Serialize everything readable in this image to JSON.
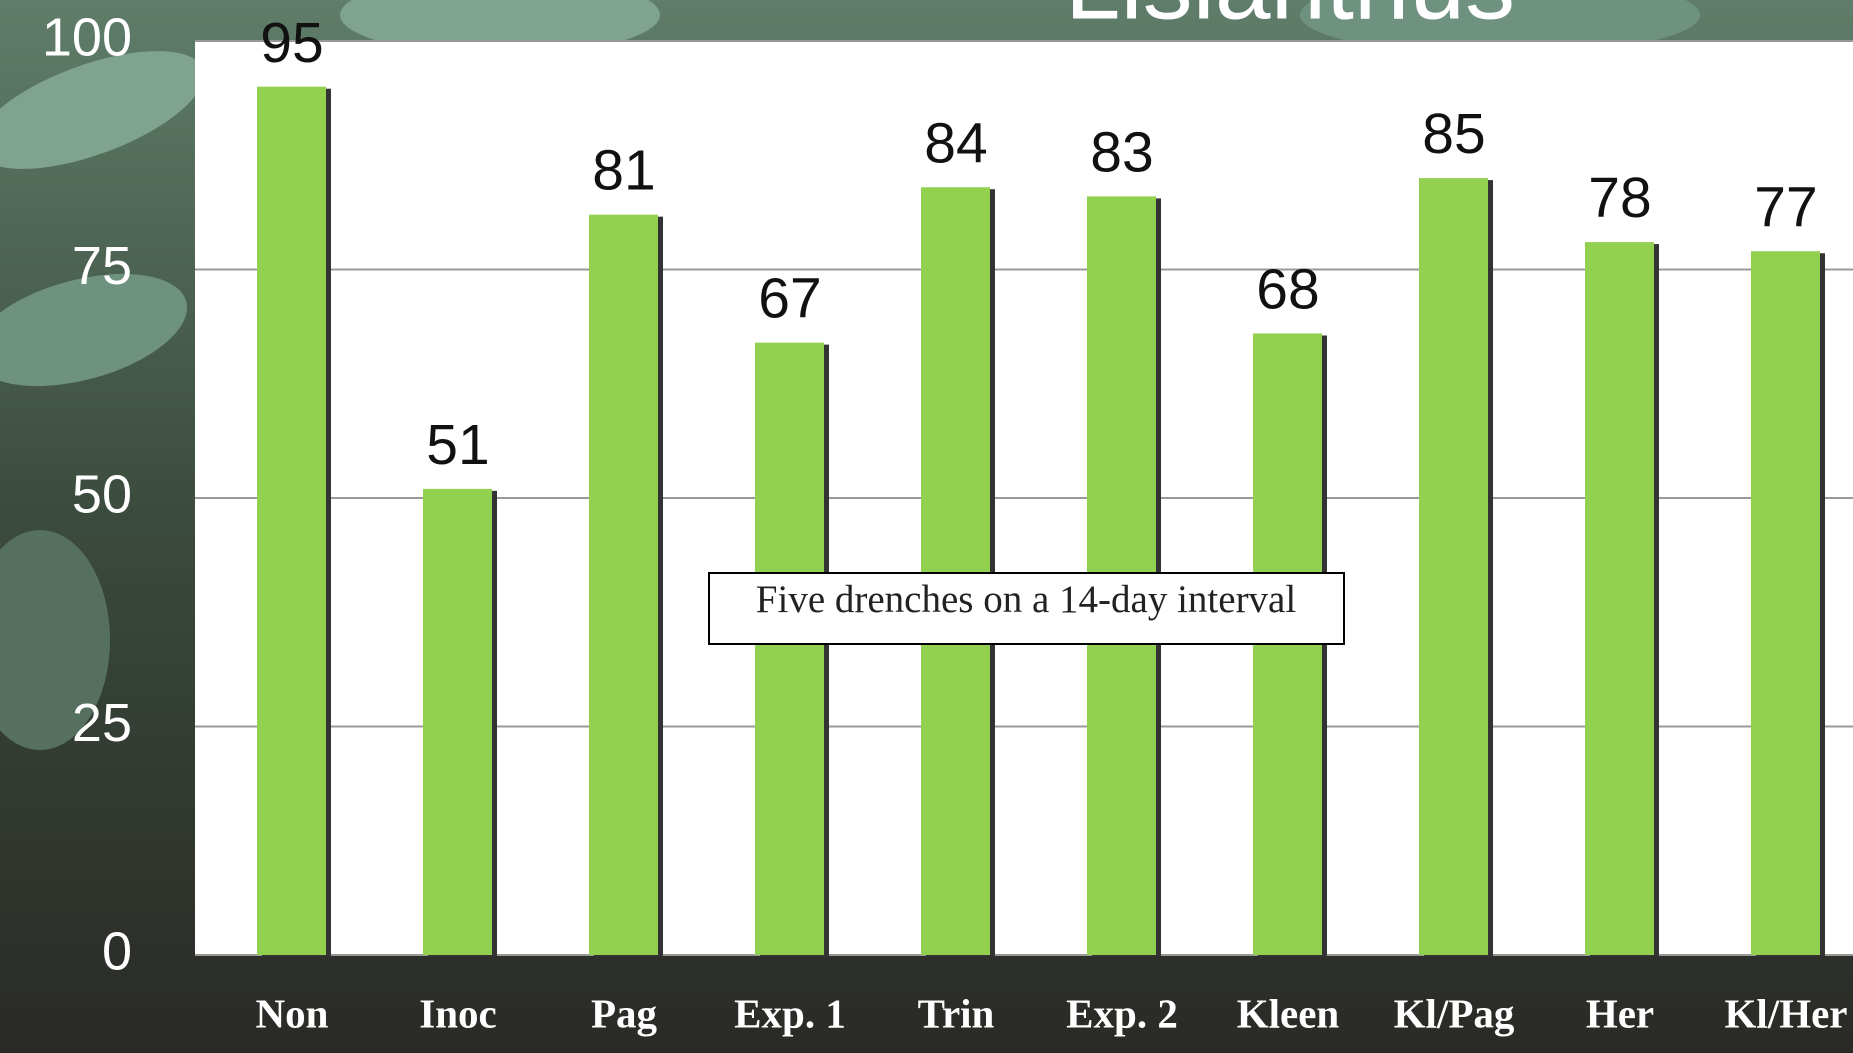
{
  "chart_data": {
    "type": "bar",
    "title": "Lisianthus",
    "categories": [
      "Non",
      "Inoc",
      "Pag",
      "Exp. 1",
      "Trin",
      "Exp. 2",
      "Kleen",
      "Kl/Pag",
      "Her",
      "Kl/Her"
    ],
    "values": [
      95,
      51,
      81,
      67,
      84,
      83,
      68,
      85,
      78,
      77
    ],
    "color": "#92d050",
    "ylim": [
      0,
      100
    ],
    "yticks": [
      0,
      25,
      50,
      75,
      100
    ],
    "grid": true,
    "annotation": "Five drenches on a 14-day interval"
  }
}
